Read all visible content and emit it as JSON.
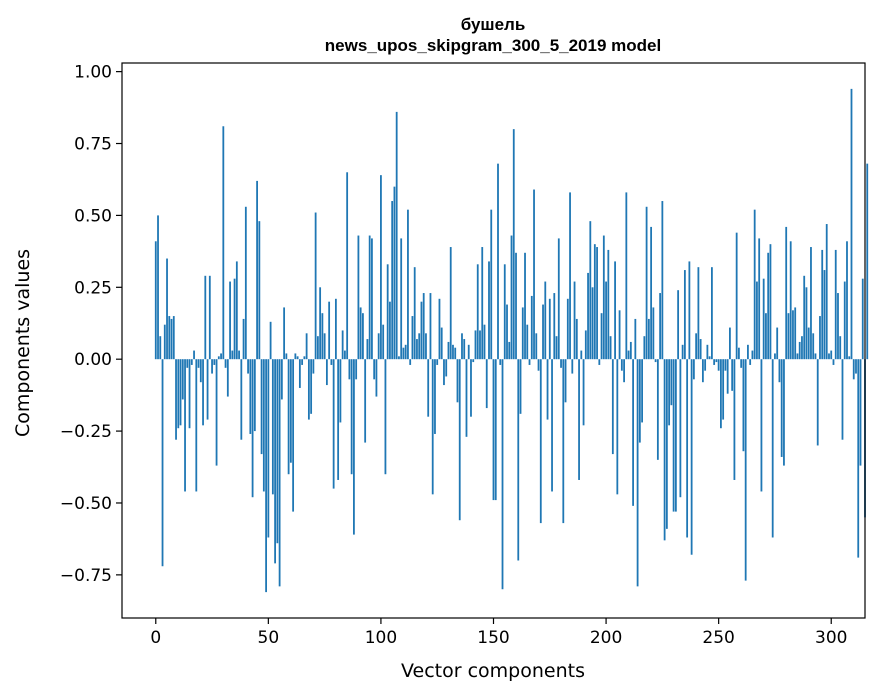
{
  "chart_data": {
    "type": "bar",
    "title": "бушель",
    "subtitle": "news_upos_skipgram_300_5_2019 model",
    "xlabel": "Vector components",
    "ylabel": "Components values",
    "xlim": [
      -15,
      315
    ],
    "ylim": [
      -0.9,
      1.03
    ],
    "xticks": [
      0,
      50,
      100,
      150,
      200,
      250,
      300
    ],
    "yticks": [
      -0.75,
      -0.5,
      -0.25,
      0.0,
      0.25,
      0.5,
      0.75,
      1.0
    ],
    "ytick_labels": [
      "−0.75",
      "−0.50",
      "−0.25",
      "0.00",
      "0.25",
      "0.50",
      "0.75",
      "1.00"
    ],
    "grid": false,
    "bar_color": "#1f77b4",
    "values": [
      0.41,
      0.5,
      0.08,
      -0.72,
      0.12,
      0.35,
      0.15,
      0.14,
      0.15,
      -0.28,
      -0.24,
      -0.23,
      -0.14,
      -0.46,
      -0.03,
      -0.24,
      -0.02,
      0.03,
      -0.46,
      -0.03,
      -0.08,
      -0.23,
      0.29,
      -0.21,
      0.29,
      -0.05,
      -0.02,
      -0.37,
      0.01,
      0.02,
      0.81,
      -0.03,
      -0.13,
      0.27,
      0.03,
      0.28,
      0.34,
      0.03,
      -0.28,
      0.14,
      0.53,
      -0.05,
      -0.26,
      -0.48,
      -0.25,
      0.62,
      0.48,
      -0.33,
      -0.46,
      -0.81,
      -0.62,
      0.13,
      -0.47,
      -0.71,
      -0.64,
      -0.79,
      -0.14,
      0.18,
      0.02,
      -0.4,
      -0.36,
      -0.53,
      0.02,
      0.01,
      -0.1,
      -0.02,
      0.01,
      0.09,
      -0.21,
      -0.19,
      -0.05,
      0.51,
      0.08,
      0.25,
      0.16,
      0.09,
      -0.09,
      0.2,
      -0.02,
      -0.45,
      0.21,
      -0.42,
      -0.22,
      0.1,
      0.03,
      0.65,
      -0.07,
      -0.4,
      -0.61,
      -0.07,
      0.43,
      0.18,
      0.16,
      -0.29,
      0.07,
      0.43,
      0.42,
      -0.07,
      -0.13,
      0.09,
      0.64,
      0.12,
      -0.4,
      0.33,
      0.2,
      0.55,
      0.6,
      0.86,
      0.01,
      0.42,
      0.04,
      0.05,
      0.52,
      -0.02,
      0.15,
      0.32,
      0.07,
      0.09,
      0.2,
      0.23,
      0.09,
      -0.2,
      0.23,
      -0.47,
      -0.26,
      -0.02,
      0.21,
      0.11,
      -0.09,
      -0.06,
      0.06,
      0.39,
      0.05,
      0.04,
      -0.15,
      -0.56,
      0.09,
      0.07,
      -0.27,
      0.05,
      -0.2,
      -0.01,
      0.1,
      0.33,
      0.1,
      0.39,
      0.12,
      -0.17,
      0.34,
      0.52,
      -0.49,
      -0.49,
      0.68,
      -0.02,
      -0.8,
      0.33,
      0.19,
      0.06,
      0.43,
      0.8,
      0.37,
      -0.7,
      -0.19,
      0.18,
      0.37,
      0.12,
      -0.02,
      0.22,
      0.59,
      0.09,
      -0.04,
      -0.57,
      0.19,
      0.27,
      -0.21,
      0.21,
      -0.46,
      0.23,
      0.08,
      0.42,
      -0.03,
      -0.57,
      -0.15,
      0.21,
      0.58,
      -0.05,
      0.27,
      0.14,
      -0.42,
      0.03,
      -0.23,
      0.1,
      0.3,
      0.48,
      0.25,
      0.4,
      0.39,
      -0.02,
      0.16,
      0.43,
      0.27,
      0.38,
      0.08,
      -0.33,
      0.34,
      -0.47,
      0.17,
      -0.04,
      -0.08,
      0.58,
      0.03,
      0.06,
      -0.51,
      0.14,
      -0.79,
      -0.29,
      -0.22,
      0.08,
      0.53,
      0.14,
      0.46,
      0.18,
      -0.01,
      -0.35,
      0.23,
      0.55,
      -0.63,
      -0.59,
      -0.23,
      -0.16,
      -0.53,
      -0.53,
      0.24,
      -0.48,
      0.05,
      0.31,
      -0.62,
      0.34,
      -0.68,
      -0.07,
      0.09,
      0.32,
      0.07,
      -0.08,
      -0.04,
      0.05,
      0.01,
      0.32,
      -0.02,
      -0.01,
      -0.04,
      -0.24,
      -0.21,
      -0.04,
      -0.12,
      0.11,
      -0.11,
      -0.42,
      0.44,
      0.04,
      -0.03,
      -0.32,
      -0.77,
      0.05,
      -0.02,
      0.03,
      0.52,
      0.27,
      0.42,
      -0.46,
      0.28,
      0.16,
      0.37,
      0.4,
      -0.62,
      0.02,
      0.11,
      -0.08,
      -0.34,
      -0.37,
      0.46,
      0.16,
      0.41,
      0.17,
      0.18,
      0.02,
      0.06,
      0.08,
      0.29,
      0.25,
      0.11,
      0.39,
      0.09,
      0.02,
      -0.3,
      0.15,
      0.38,
      0.31,
      0.47,
      0.02,
      0.03,
      -0.02,
      0.38,
      0.23,
      0.08,
      -0.28,
      0.27,
      0.41,
      0.01,
      0.94,
      -0.07,
      -0.05,
      -0.69,
      -0.37,
      0.28,
      -0.55,
      0.68
    ]
  }
}
